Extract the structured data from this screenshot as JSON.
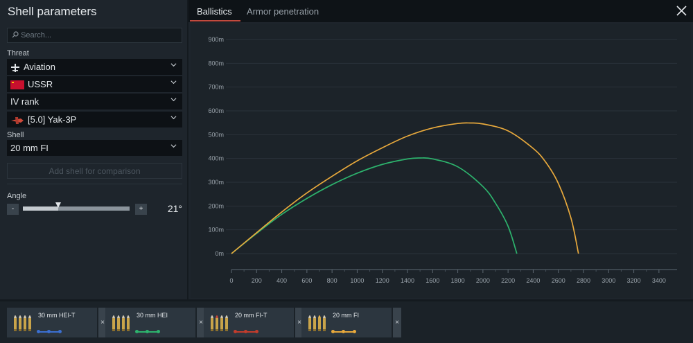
{
  "panel": {
    "title": "Shell parameters",
    "search_placeholder": "Search...",
    "threat_label": "Threat",
    "threat_type": "Aviation",
    "nation": "USSR",
    "rank": "IV rank",
    "vehicle": "[5.0] Yak-3P",
    "shell_label": "Shell",
    "shell": "20 mm FI",
    "add_shell": "Add shell for comparison",
    "angle_label": "Angle",
    "angle_minus": "-",
    "angle_plus": "+",
    "angle_value": "21°",
    "angle_slider_fraction": 0.33
  },
  "tabs": [
    {
      "label": "Ballistics",
      "active": true
    },
    {
      "label": "Armor penetration",
      "active": false
    }
  ],
  "chart_data": {
    "type": "line",
    "y_ticks": [
      "900m",
      "800m",
      "700m",
      "600m",
      "500m",
      "400m",
      "300m",
      "200m",
      "100m",
      "0m"
    ],
    "x_ticks": [
      "0",
      "200",
      "400",
      "600",
      "800",
      "1000",
      "1200",
      "1400",
      "1600",
      "1800",
      "2000",
      "2200",
      "2400",
      "2600",
      "2800",
      "3000",
      "3200",
      "3400"
    ],
    "xlim": [
      0,
      3500
    ],
    "ylim": [
      0,
      900
    ],
    "grid": true,
    "series": [
      {
        "color": "#2db36d",
        "x": [
          0,
          200,
          400,
          600,
          800,
          1000,
          1200,
          1400,
          1500,
          1600,
          1800,
          2000,
          2100,
          2200,
          2270
        ],
        "y": [
          0,
          85,
          165,
          232,
          290,
          338,
          375,
          398,
          402,
          398,
          365,
          282,
          212,
          115,
          0
        ]
      },
      {
        "color": "#e8a93c",
        "x": [
          0,
          200,
          400,
          600,
          800,
          1000,
          1200,
          1400,
          1600,
          1800,
          1900,
          2000,
          2200,
          2400,
          2500,
          2600,
          2700,
          2760
        ],
        "y": [
          0,
          88,
          175,
          255,
          325,
          390,
          445,
          494,
          528,
          547,
          549,
          545,
          516,
          442,
          384,
          295,
          150,
          0
        ]
      }
    ]
  },
  "shell_cards": [
    {
      "name": "30 mm HEI-T",
      "close": "×",
      "color": "#3b6fd1",
      "shells": [
        "#d0c8b4",
        "#d0c8b4",
        "#d0c8b4",
        "#d0c8b4"
      ]
    },
    {
      "name": "30 mm HEI",
      "close": "×",
      "color": "#2db36d",
      "shells": [
        "#d0c8b4",
        "#d0c8b4",
        "#d0c8b4",
        "#d0c8b4"
      ]
    },
    {
      "name": "20 mm FI-T",
      "close": "×",
      "color": "#c23c2c",
      "shells": [
        "#d0c8b4",
        "#c94a3a",
        "#d0c8b4",
        "#d0c8b4"
      ]
    },
    {
      "name": "20 mm FI",
      "close": "×",
      "color": "#e8a93c",
      "shells": [
        "#d0c8b4",
        "#d0c8b4",
        "#e0b050",
        "#d0c8b4"
      ]
    }
  ]
}
